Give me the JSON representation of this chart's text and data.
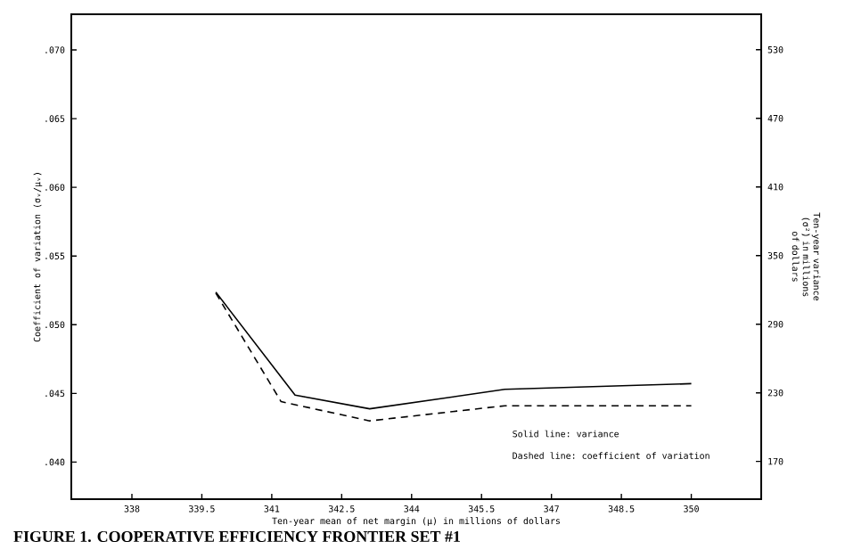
{
  "chart_data": {
    "type": "line",
    "title": "FIGURE 1. COOPERATIVE EFFICIENCY FRONTIER SET #1",
    "xlabel": "Ten-year mean of net margin (μ) in millions of dollars",
    "ylabel": "Coefficient of variation (σᵥ/μᵥ)",
    "y2label": "Ten-year variance (σ²) in millions of dollars",
    "xlim": [
      336.7,
      351.5
    ],
    "ylim": [
      0.0373,
      0.0726
    ],
    "y2lim": [
      137,
      561
    ],
    "xticks": [
      338,
      339.5,
      341,
      342.5,
      344,
      345.5,
      347,
      348.5,
      350
    ],
    "yticks": [
      {
        "value": 0.04,
        "label": ".040"
      },
      {
        "value": 0.045,
        "label": ".045"
      },
      {
        "value": 0.05,
        "label": ".050"
      },
      {
        "value": 0.055,
        "label": ".055"
      },
      {
        "value": 0.06,
        "label": ".060"
      },
      {
        "value": 0.065,
        "label": ".065"
      },
      {
        "value": 0.07,
        "label": ".070"
      }
    ],
    "y2ticks": [
      170,
      230,
      290,
      350,
      410,
      470,
      530
    ],
    "series": [
      {
        "color": "#000000",
        "axis": "y2",
        "line_style": "solid",
        "x": [
          339.8,
          341.5,
          343.1,
          346.0,
          350.0
        ],
        "values": [
          318,
          228,
          216,
          233,
          238
        ]
      },
      {
        "color": "#000000",
        "line_style": "dashed",
        "x": [
          339.8,
          341.2,
          343.1,
          346.0,
          350.0
        ],
        "values": [
          0.0523,
          0.0444,
          0.043,
          0.0441,
          0.0441
        ]
      }
    ],
    "annotations": [
      "Solid line:  variance",
      "Dashed line: coefficient of variation"
    ],
    "grid": false,
    "marker": "none"
  }
}
